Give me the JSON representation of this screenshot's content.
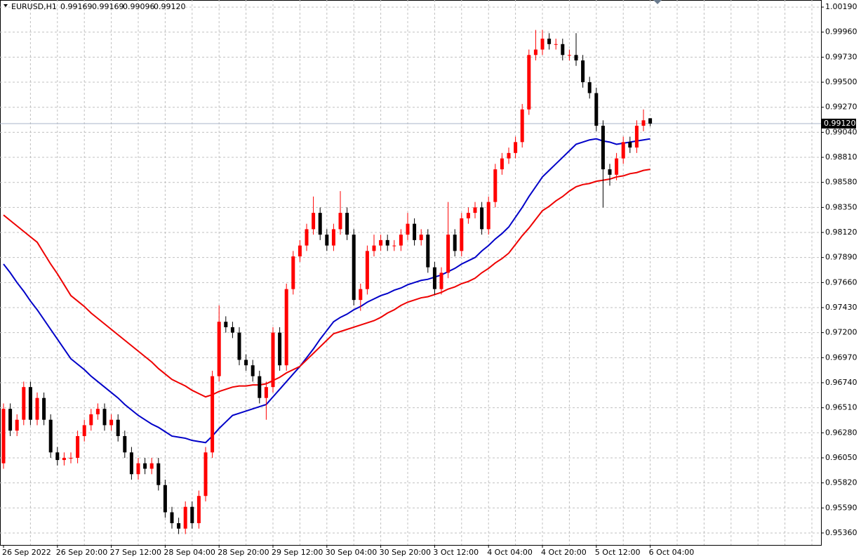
{
  "header": {
    "symbol": "EURUSD,H1",
    "ohlc": [
      "0.99169",
      "0.99169",
      "0.99096",
      "0.99120"
    ]
  },
  "chart_data": {
    "type": "candlestick",
    "categories": [
      "26 Sep 2022",
      null,
      null,
      null,
      null,
      null,
      null,
      null,
      "26 Sep 20:00",
      null,
      null,
      null,
      null,
      null,
      null,
      null,
      "27 Sep 12:00",
      null,
      null,
      null,
      null,
      null,
      null,
      null,
      "28 Sep 04:00",
      null,
      null,
      null,
      null,
      null,
      null,
      null,
      "28 Sep 20:00",
      null,
      null,
      null,
      null,
      null,
      null,
      null,
      "29 Sep 12:00",
      null,
      null,
      null,
      null,
      null,
      null,
      null,
      "30 Sep 04:00",
      null,
      null,
      null,
      null,
      null,
      null,
      null,
      "30 Sep 20:00",
      null,
      null,
      null,
      null,
      null,
      null,
      null,
      "3 Oct 12:00",
      null,
      null,
      null,
      null,
      null,
      null,
      null,
      "4 Oct 04:00",
      null,
      null,
      null,
      null,
      null,
      null,
      null,
      "4 Oct 20:00",
      null,
      null,
      null,
      null,
      null,
      null,
      null,
      "5 Oct 12:00",
      null,
      null,
      null,
      null,
      null,
      null,
      null,
      "6 Oct 04:00"
    ],
    "open": [
      0.96,
      0.965,
      0.963,
      0.964,
      0.967,
      0.964,
      0.966,
      0.964,
      0.961,
      0.9603,
      0.9605,
      0.9605,
      0.9625,
      0.9635,
      0.9645,
      0.965,
      0.9635,
      0.964,
      0.9625,
      0.961,
      0.959,
      0.96,
      0.9595,
      0.96,
      0.958,
      0.9555,
      0.9545,
      0.954,
      0.956,
      0.9545,
      0.957,
      0.961,
      0.968,
      0.973,
      0.9725,
      0.972,
      0.9695,
      0.969,
      0.968,
      0.966,
      0.967,
      0.972,
      0.969,
      0.976,
      0.979,
      0.98,
      0.9815,
      0.983,
      0.981,
      0.98,
      0.9815,
      0.983,
      0.981,
      0.975,
      0.976,
      0.9795,
      0.98,
      0.9805,
      0.98,
      0.98,
      0.981,
      0.982,
      0.9805,
      0.981,
      0.978,
      0.976,
      0.9775,
      0.981,
      0.9795,
      0.9825,
      0.983,
      0.9835,
      0.9815,
      0.984,
      0.987,
      0.988,
      0.9885,
      0.9895,
      0.9925,
      0.9975,
      0.998,
      0.999,
      0.9985,
      0.9985,
      0.9975,
      0.9975,
      0.997,
      0.995,
      0.994,
      0.991,
      0.987,
      0.9865,
      0.988,
      0.9895,
      0.989,
      0.991,
      0.99169
    ],
    "high": [
      0.9655,
      0.9655,
      0.9645,
      0.9675,
      0.9675,
      0.9665,
      0.9665,
      0.9645,
      0.9615,
      0.961,
      0.961,
      0.963,
      0.964,
      0.965,
      0.9655,
      0.9655,
      0.9645,
      0.9645,
      0.963,
      0.9615,
      0.9605,
      0.9605,
      0.9605,
      0.9605,
      0.9585,
      0.956,
      0.955,
      0.9565,
      0.9565,
      0.9575,
      0.9615,
      0.9685,
      0.9745,
      0.9735,
      0.973,
      0.9725,
      0.97,
      0.9695,
      0.9685,
      0.9675,
      0.9725,
      0.9725,
      0.9765,
      0.9795,
      0.9805,
      0.982,
      0.9845,
      0.9835,
      0.9815,
      0.982,
      0.985,
      0.9835,
      0.9815,
      0.9765,
      0.98,
      0.981,
      0.981,
      0.981,
      0.9805,
      0.9815,
      0.983,
      0.9825,
      0.9815,
      0.9815,
      0.9785,
      0.978,
      0.984,
      0.9815,
      0.983,
      0.9835,
      0.984,
      0.984,
      0.9845,
      0.9875,
      0.9885,
      0.989,
      0.99,
      0.993,
      0.998,
      0.9998,
      0.9998,
      0.9995,
      0.999,
      0.999,
      0.998,
      0.9995,
      0.9975,
      0.9955,
      0.9945,
      0.9915,
      0.9875,
      0.9885,
      0.99,
      0.99,
      0.9915,
      0.9925,
      0.99169
    ],
    "low": [
      0.9595,
      0.9625,
      0.9625,
      0.9635,
      0.9635,
      0.9635,
      0.9635,
      0.9605,
      0.9598,
      0.9598,
      0.96,
      0.96,
      0.962,
      0.963,
      0.964,
      0.963,
      0.963,
      0.962,
      0.9605,
      0.9585,
      0.9585,
      0.959,
      0.959,
      0.9575,
      0.955,
      0.954,
      0.9535,
      0.9535,
      0.954,
      0.954,
      0.9565,
      0.9605,
      0.9675,
      0.972,
      0.9715,
      0.969,
      0.9685,
      0.9675,
      0.9655,
      0.964,
      0.9665,
      0.9685,
      0.9685,
      0.9755,
      0.9785,
      0.9795,
      0.981,
      0.9805,
      0.9795,
      0.9795,
      0.981,
      0.9805,
      0.9745,
      0.974,
      0.9755,
      0.979,
      0.9795,
      0.9795,
      0.9795,
      0.9795,
      0.9805,
      0.98,
      0.98,
      0.9775,
      0.9755,
      0.9755,
      0.977,
      0.979,
      0.979,
      0.982,
      0.9825,
      0.981,
      0.981,
      0.9835,
      0.9865,
      0.9875,
      0.988,
      0.989,
      0.992,
      0.997,
      0.9975,
      0.998,
      0.998,
      0.997,
      0.997,
      0.9965,
      0.9945,
      0.9935,
      0.9905,
      0.9835,
      0.9855,
      0.986,
      0.9875,
      0.9885,
      0.9885,
      0.9905,
      0.99096
    ],
    "close": [
      0.965,
      0.963,
      0.964,
      0.967,
      0.964,
      0.966,
      0.964,
      0.961,
      0.9603,
      0.9605,
      0.9605,
      0.9625,
      0.9635,
      0.9645,
      0.965,
      0.9635,
      0.964,
      0.9625,
      0.961,
      0.959,
      0.96,
      0.9595,
      0.96,
      0.958,
      0.9555,
      0.9545,
      0.954,
      0.956,
      0.9545,
      0.957,
      0.961,
      0.968,
      0.973,
      0.9725,
      0.972,
      0.9695,
      0.969,
      0.968,
      0.966,
      0.967,
      0.972,
      0.969,
      0.976,
      0.979,
      0.98,
      0.9815,
      0.983,
      0.981,
      0.98,
      0.9815,
      0.983,
      0.981,
      0.975,
      0.976,
      0.9795,
      0.98,
      0.9805,
      0.98,
      0.98,
      0.981,
      0.982,
      0.9805,
      0.981,
      0.978,
      0.976,
      0.9775,
      0.981,
      0.9795,
      0.9825,
      0.983,
      0.9835,
      0.9815,
      0.984,
      0.987,
      0.988,
      0.9885,
      0.9895,
      0.9925,
      0.9975,
      0.998,
      0.999,
      0.9985,
      0.9985,
      0.9975,
      0.9975,
      0.997,
      0.995,
      0.994,
      0.991,
      0.987,
      0.9865,
      0.988,
      0.9895,
      0.989,
      0.991,
      0.9915,
      0.9912
    ],
    "up_color": "#ff0000",
    "down_color": "#000000",
    "series": [
      {
        "color": "#0000c8",
        "values": [
          0.9783,
          0.9775,
          0.9766,
          0.9758,
          0.9749,
          0.9741,
          0.9732,
          0.9723,
          0.9714,
          0.9705,
          0.9696,
          0.9691,
          0.9686,
          0.968,
          0.9675,
          0.967,
          0.9665,
          0.966,
          0.9654,
          0.9649,
          0.9644,
          0.964,
          0.9636,
          0.9633,
          0.9629,
          0.9625,
          0.9624,
          0.9623,
          0.9621,
          0.962,
          0.9619,
          0.9625,
          0.9632,
          0.9638,
          0.9644,
          0.9646,
          0.9648,
          0.965,
          0.9652,
          0.9654,
          0.9661,
          0.9668,
          0.9675,
          0.9682,
          0.9689,
          0.9697,
          0.9705,
          0.9714,
          0.9722,
          0.973,
          0.9734,
          0.9737,
          0.9741,
          0.9744,
          0.9748,
          0.9751,
          0.9754,
          0.9756,
          0.9759,
          0.9761,
          0.9764,
          0.9766,
          0.9768,
          0.9769,
          0.9771,
          0.9773,
          0.9776,
          0.9779,
          0.9783,
          0.9786,
          0.9789,
          0.9795,
          0.98,
          0.9806,
          0.9811,
          0.9817,
          0.9826,
          0.9835,
          0.9845,
          0.9854,
          0.9863,
          0.9869,
          0.9875,
          0.9881,
          0.9887,
          0.9893,
          0.9895,
          0.9897,
          0.9898,
          0.9896,
          0.9895,
          0.9893,
          0.9894,
          0.9895,
          0.9896,
          0.9897,
          0.9898
        ]
      },
      {
        "color": "#ee0000",
        "values": [
          0.9828,
          0.9823,
          0.9818,
          0.9813,
          0.9808,
          0.9803,
          0.9793,
          0.9783,
          0.9774,
          0.9764,
          0.9754,
          0.9749,
          0.9744,
          0.9738,
          0.9733,
          0.9728,
          0.9723,
          0.9718,
          0.9713,
          0.9708,
          0.9703,
          0.9698,
          0.9693,
          0.9687,
          0.9682,
          0.9677,
          0.9674,
          0.9671,
          0.9667,
          0.9664,
          0.9661,
          0.9663,
          0.9666,
          0.9668,
          0.967,
          0.9671,
          0.9671,
          0.9672,
          0.9672,
          0.9673,
          0.9676,
          0.9679,
          0.9683,
          0.9686,
          0.9689,
          0.9695,
          0.9701,
          0.9707,
          0.9713,
          0.9719,
          0.9721,
          0.9723,
          0.9725,
          0.9727,
          0.9729,
          0.9731,
          0.9734,
          0.9738,
          0.9741,
          0.9745,
          0.9748,
          0.975,
          0.9752,
          0.9753,
          0.9755,
          0.9757,
          0.976,
          0.9762,
          0.9765,
          0.9767,
          0.977,
          0.9775,
          0.9779,
          0.9784,
          0.9788,
          0.9793,
          0.9801,
          0.9809,
          0.9816,
          0.9824,
          0.9832,
          0.9836,
          0.9841,
          0.9845,
          0.985,
          0.9854,
          0.9856,
          0.9857,
          0.9859,
          0.986,
          0.9861,
          0.9863,
          0.9864,
          0.9866,
          0.9867,
          0.9869,
          0.987
        ]
      }
    ],
    "bid": {
      "value": 0.9912,
      "label": "0.99120"
    },
    "ylim": [
      0.9525,
      1.00255
    ],
    "yticks": [
      {
        "value": 0.9536,
        "label": "0.95360"
      },
      {
        "value": 0.9559,
        "label": "0.95590"
      },
      {
        "value": 0.9582,
        "label": "0.95820"
      },
      {
        "value": 0.9605,
        "label": "0.96050"
      },
      {
        "value": 0.9628,
        "label": "0.96280"
      },
      {
        "value": 0.9651,
        "label": "0.96510"
      },
      {
        "value": 0.9674,
        "label": "0.96740"
      },
      {
        "value": 0.9697,
        "label": "0.96970"
      },
      {
        "value": 0.972,
        "label": "0.97200"
      },
      {
        "value": 0.9743,
        "label": "0.97430"
      },
      {
        "value": 0.9766,
        "label": "0.97660"
      },
      {
        "value": 0.9789,
        "label": "0.97890"
      },
      {
        "value": 0.9812,
        "label": "0.98120"
      },
      {
        "value": 0.9835,
        "label": "0.98350"
      },
      {
        "value": 0.9858,
        "label": "0.98580"
      },
      {
        "value": 0.9881,
        "label": "0.98810"
      },
      {
        "value": 0.9904,
        "label": "0.99040"
      },
      {
        "value": 0.9927,
        "label": "0.99270"
      },
      {
        "value": 0.995,
        "label": "0.99500"
      },
      {
        "value": 0.9973,
        "label": "0.99730"
      },
      {
        "value": 0.9996,
        "label": "0.99960"
      },
      {
        "value": 1.0019,
        "label": "1.00190"
      }
    ],
    "grid": true
  }
}
